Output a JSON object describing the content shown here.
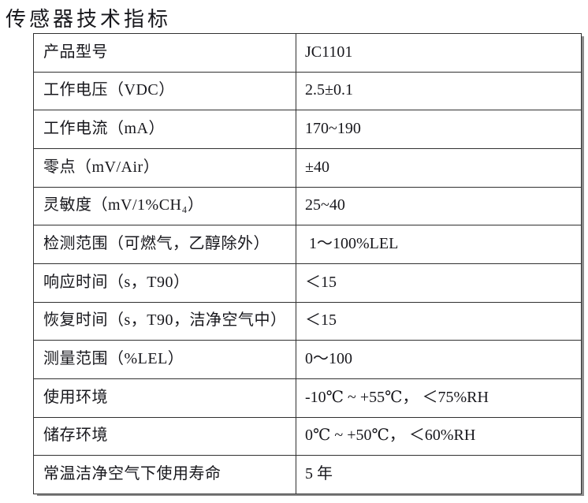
{
  "page": {
    "title": "传感器技术指标"
  },
  "table": {
    "rows": [
      {
        "label": "产品型号",
        "value": "JC1101"
      },
      {
        "label": "工作电压（VDC）",
        "value": "2.5±0.1"
      },
      {
        "label": "工作电流（mA）",
        "value": "170~190"
      },
      {
        "label": "零点（mV/Air）",
        "value": "±40"
      },
      {
        "label": "灵敏度（mV/1%CH₄）",
        "value": "25~40"
      },
      {
        "label": "检测范围（可燃气，乙醇除外）",
        "value": " 1～100%LEL"
      },
      {
        "label": "响应时间（s，T90）",
        "value": "＜15"
      },
      {
        "label": "恢复时间（s，T90，洁净空气中）",
        "value": "＜15"
      },
      {
        "label": "测量范围（%LEL）",
        "value": "0～100"
      },
      {
        "label": "使用环境",
        "value": "-10℃ ~ +55℃， ＜75%RH"
      },
      {
        "label": "储存环境",
        "value": "0℃ ~ +50℃， ＜60%RH"
      },
      {
        "label": "常温洁净空气下使用寿命",
        "value": "5 年"
      }
    ]
  }
}
